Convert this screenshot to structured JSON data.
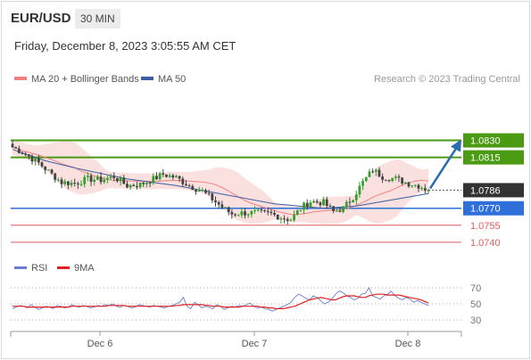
{
  "header": {
    "symbol": "EUR/USD",
    "timeframe": "30 MIN",
    "datetime": "Friday, December 8, 2023 3:05:55 AM CET"
  },
  "legend": {
    "ma_bb_label": "MA 20 + Bollinger Bands",
    "ma50_label": "MA 50",
    "credit": "Research © 2023 Trading Central",
    "rsi_label": "RSI",
    "rsi_ma_label": "9MA"
  },
  "colors": {
    "bull": "#33a02c",
    "bear": "#444444",
    "ma20": "#f08080",
    "bollinger": "#fadadb",
    "ma50": "#3b5fa0",
    "resistance": "#4a9a12",
    "pivot": "#2e6fd9",
    "support": "#e25c5c",
    "current": "#333333",
    "arrow": "#2b6cb0",
    "rsi": "#6a7fd0",
    "rsi_ma": "#e02020"
  },
  "chart_data": [
    {
      "type": "candlestick",
      "title": "EUR/USD",
      "x_ticks": [
        "Dec 6",
        "Dec 7",
        "Dec 8"
      ],
      "current_price": "1.0786",
      "levels": [
        {
          "value": "1.0830",
          "kind": "resistance"
        },
        {
          "value": "1.0815",
          "kind": "resistance"
        },
        {
          "value": "1.0770",
          "kind": "pivot"
        },
        {
          "value": "1.0755",
          "kind": "support"
        },
        {
          "value": "1.0740",
          "kind": "support"
        }
      ],
      "ylim": [
        1.0732,
        1.0858
      ],
      "target": 1.083,
      "series": [
        {
          "name": "MA 20 + Bollinger Bands"
        },
        {
          "name": "MA 50"
        }
      ],
      "anchors": [
        {
          "i": 0,
          "p": 1.0824
        },
        {
          "i": 4,
          "p": 1.0818
        },
        {
          "i": 8,
          "p": 1.081
        },
        {
          "i": 12,
          "p": 1.08
        },
        {
          "i": 15,
          "p": 1.0793
        },
        {
          "i": 19,
          "p": 1.0792
        },
        {
          "i": 23,
          "p": 1.0796
        },
        {
          "i": 27,
          "p": 1.0795
        },
        {
          "i": 31,
          "p": 1.0798
        },
        {
          "i": 35,
          "p": 1.079
        },
        {
          "i": 39,
          "p": 1.0791
        },
        {
          "i": 43,
          "p": 1.0796
        },
        {
          "i": 46,
          "p": 1.08
        },
        {
          "i": 50,
          "p": 1.0797
        },
        {
          "i": 54,
          "p": 1.079
        },
        {
          "i": 58,
          "p": 1.0785
        },
        {
          "i": 61,
          "p": 1.0778
        },
        {
          "i": 64,
          "p": 1.0771
        },
        {
          "i": 67,
          "p": 1.0765
        },
        {
          "i": 71,
          "p": 1.0766
        },
        {
          "i": 75,
          "p": 1.0766
        },
        {
          "i": 79,
          "p": 1.0765
        },
        {
          "i": 82,
          "p": 1.0762
        },
        {
          "i": 85,
          "p": 1.076
        },
        {
          "i": 88,
          "p": 1.077
        },
        {
          "i": 91,
          "p": 1.0776
        },
        {
          "i": 95,
          "p": 1.0775
        },
        {
          "i": 98,
          "p": 1.0767
        },
        {
          "i": 101,
          "p": 1.077
        },
        {
          "i": 104,
          "p": 1.078
        },
        {
          "i": 107,
          "p": 1.0793
        },
        {
          "i": 110,
          "p": 1.0804
        },
        {
          "i": 113,
          "p": 1.0798
        },
        {
          "i": 117,
          "p": 1.0796
        },
        {
          "i": 121,
          "p": 1.0792
        },
        {
          "i": 124,
          "p": 1.079
        },
        {
          "i": 127,
          "p": 1.0786
        }
      ],
      "bars": 128,
      "ma50": [
        [
          0,
          1.0822
        ],
        [
          10,
          1.0812
        ],
        [
          20,
          1.0805
        ],
        [
          35,
          1.0796
        ],
        [
          50,
          1.079
        ],
        [
          65,
          1.0782
        ],
        [
          80,
          1.0774
        ],
        [
          95,
          1.077
        ],
        [
          105,
          1.0772
        ],
        [
          115,
          1.0777
        ],
        [
          127,
          1.0783
        ]
      ]
    },
    {
      "type": "line",
      "title": "RSI",
      "y_ticks": [
        "70",
        "50",
        "30"
      ],
      "ylim": [
        20,
        80
      ],
      "series": [
        {
          "name": "RSI",
          "values": [
            44,
            46,
            48,
            47,
            45,
            49,
            46,
            43,
            45,
            47,
            46,
            44,
            48,
            47,
            45,
            46,
            49,
            47,
            46,
            48,
            47,
            45,
            46,
            48,
            47,
            49,
            48,
            50,
            47,
            46,
            48,
            47,
            45,
            46,
            49,
            48,
            47,
            46,
            48,
            47,
            46,
            45,
            47,
            48,
            50,
            52,
            58,
            47,
            44,
            52,
            49,
            45,
            47,
            46,
            44,
            49,
            47,
            43,
            45,
            47,
            46,
            48,
            47,
            49,
            51,
            47,
            45,
            46,
            44,
            43,
            41,
            43,
            45,
            47,
            49,
            52,
            58,
            62,
            60,
            57,
            55,
            60,
            58,
            54,
            50,
            52,
            56,
            62,
            66,
            64,
            60,
            58,
            55,
            57,
            62,
            63,
            70,
            60,
            58,
            56,
            60,
            62,
            66,
            60,
            57,
            55,
            58,
            56,
            52,
            54,
            52,
            50,
            48
          ]
        },
        {
          "name": "9MA",
          "values": [
            47,
            47,
            47,
            47,
            46,
            46,
            46,
            46,
            46,
            46,
            46,
            46,
            46,
            46,
            46,
            46,
            47,
            47,
            47,
            47,
            47,
            47,
            47,
            47,
            47,
            47,
            48,
            48,
            48,
            48,
            48,
            47,
            47,
            47,
            47,
            47,
            47,
            47,
            47,
            47,
            47,
            47,
            47,
            47,
            48,
            48,
            49,
            49,
            49,
            49,
            49,
            49,
            48,
            48,
            47,
            47,
            47,
            46,
            46,
            46,
            46,
            46,
            47,
            47,
            47,
            47,
            47,
            46,
            46,
            45,
            45,
            44,
            44,
            44,
            45,
            46,
            47,
            49,
            51,
            53,
            55,
            56,
            57,
            58,
            57,
            56,
            55,
            55,
            57,
            59,
            60,
            60,
            60,
            59,
            58,
            58,
            60,
            61,
            62,
            62,
            62,
            61,
            61,
            61,
            61,
            60,
            59,
            58,
            57,
            56,
            55,
            53,
            51
          ]
        }
      ]
    }
  ]
}
